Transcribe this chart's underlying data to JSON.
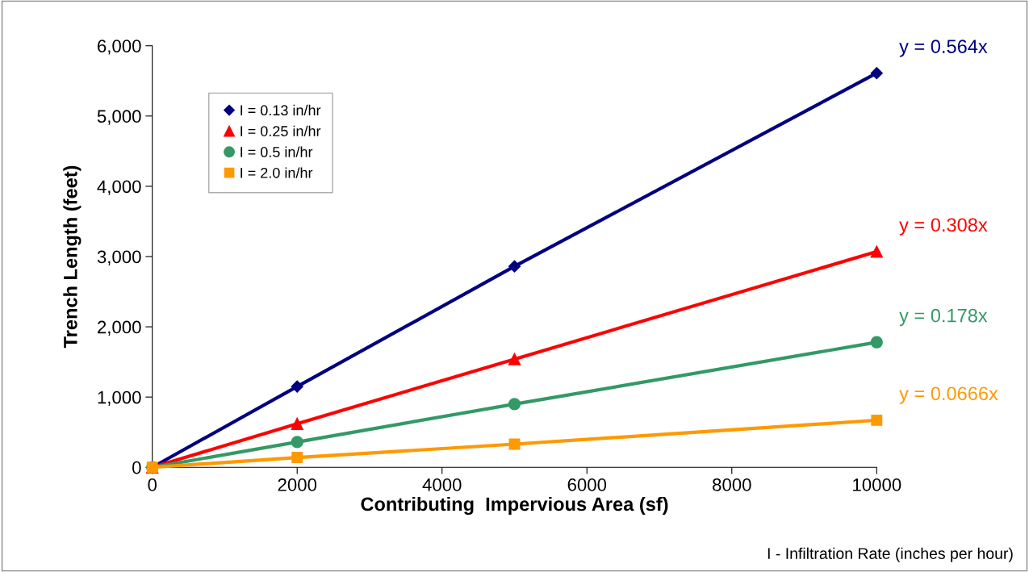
{
  "chart_data": {
    "type": "line",
    "xlabel": "Contributing  Impervious Area (sf)",
    "ylabel": "Trench Length (feet)",
    "x": [
      0,
      2000,
      5000,
      10000
    ],
    "series": [
      {
        "name": "I = 0.13 in/hr",
        "color": "#000080",
        "marker": "diamond",
        "values": [
          0,
          1150,
          2860,
          5610
        ]
      },
      {
        "name": "I = 0.25 in/hr",
        "color": "#ff0000",
        "marker": "triangle",
        "values": [
          0,
          620,
          1540,
          3070
        ]
      },
      {
        "name": "I = 0.5 in/hr",
        "color": "#339966",
        "marker": "circle",
        "values": [
          0,
          360,
          900,
          1780
        ]
      },
      {
        "name": "I = 2.0 in/hr",
        "color": "#ff9900",
        "marker": "square",
        "values": [
          0,
          140,
          330,
          670
        ]
      }
    ],
    "xlim": [
      0,
      10000
    ],
    "xticks": [
      0,
      2000,
      4000,
      6000,
      8000,
      10000
    ],
    "ylim": [
      0,
      6000
    ],
    "yticks": [
      {
        "value": 0,
        "label": "0"
      },
      {
        "value": 1000,
        "label": "1,000"
      },
      {
        "value": 2000,
        "label": "2,000"
      },
      {
        "value": 3000,
        "label": "3,000"
      },
      {
        "value": 4000,
        "label": "4,000"
      },
      {
        "value": 5000,
        "label": "5,000"
      },
      {
        "value": 6000,
        "label": "6,000"
      }
    ],
    "grid": false,
    "legend": "top left",
    "line_style": "solid",
    "annotations": [
      "y = 0.564x",
      "y = 0.308x",
      "y = 0.178x",
      "y = 0.0666x",
      "I - Infiltration Rate (inches per hour)"
    ]
  }
}
